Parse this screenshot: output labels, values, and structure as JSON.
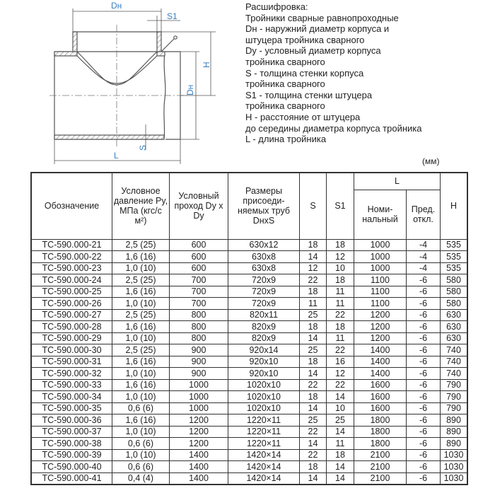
{
  "drawing": {
    "labels": {
      "dh_top": "Dн",
      "s1": "S1",
      "h": "H",
      "dh_side": "Dн",
      "l": "L",
      "s": "S"
    },
    "label_color": "#3a7fc1"
  },
  "legend": {
    "lines": [
      "Расшифровка:",
      "Тройники сварные равнопроходные",
      "Dн - наружний диаметр корпуса и",
      "штуцера тройника сварного",
      "Dy - условный диаметр корпуса",
      "тройника сварного",
      "S - толщина стенки корпуса",
      "тройника сварного",
      "S1 - толщина стенки штуцера",
      "тройника сварного",
      "H - расстояние от штуцера",
      "до середины диаметра корпуса тройника",
      "L - длина тройника"
    ],
    "units": "(мм)"
  },
  "table": {
    "headers": {
      "designation": "Обозначение",
      "pressure": "Условное давление Py, МПа (кгс/с м²)",
      "bore": "Условный проход Dy x Dy",
      "pipe_size": "Размеры присоеди-няемых труб DнxS",
      "s": "S",
      "s1": "S1",
      "l_group": "L",
      "l_nominal": "Номи-нальный",
      "l_tolerance": "Пред. откл.",
      "h": "H"
    },
    "rows": [
      [
        "ТС-590.000-21",
        "2,5 (25)",
        "600",
        "630x12",
        "18",
        "18",
        "1000",
        "-4",
        "535"
      ],
      [
        "ТС-590.000-22",
        "1,6 (16)",
        "600",
        "630x8",
        "14",
        "12",
        "1000",
        "-4",
        "535"
      ],
      [
        "ТС-590.000-23",
        "1,0 (10)",
        "600",
        "630x8",
        "12",
        "10",
        "1000",
        "-4",
        "535"
      ],
      [
        "ТС-590.000-24",
        "2,5 (25)",
        "700",
        "720x9",
        "22",
        "18",
        "1100",
        "-6",
        "580"
      ],
      [
        "ТС-590.000-25",
        "1,6 (16)",
        "700",
        "720x9",
        "18",
        "11",
        "1100",
        "-6",
        "580"
      ],
      [
        "ТС-590.000-26",
        "1,0 (10)",
        "700",
        "720x9",
        "11",
        "11",
        "1100",
        "-6",
        "580"
      ],
      [
        "ТС-590.000-27",
        "2,5 (25)",
        "800",
        "820x11",
        "25",
        "22",
        "1200",
        "-6",
        "630"
      ],
      [
        "ТС-590.000-28",
        "1,6 (16)",
        "800",
        "820x9",
        "18",
        "18",
        "1200",
        "-6",
        "630"
      ],
      [
        "ТС-590.000-29",
        "1,0 (10)",
        "800",
        "820x9",
        "14",
        "11",
        "1200",
        "-6",
        "630"
      ],
      [
        "ТС-590.000-30",
        "2,5 (25)",
        "900",
        "920x14",
        "25",
        "22",
        "1400",
        "-6",
        "740"
      ],
      [
        "ТС-590.000-31",
        "1,6 (16)",
        "900",
        "920x10",
        "18",
        "16",
        "1400",
        "-6",
        "740"
      ],
      [
        "ТС-590.000-32",
        "1,0 (10)",
        "900",
        "920x10",
        "14",
        "12",
        "1400",
        "-6",
        "740"
      ],
      [
        "ТС-590.000-33",
        "1,6 (16)",
        "1000",
        "1020x10",
        "22",
        "22",
        "1600",
        "-6",
        "790"
      ],
      [
        "ТС-590.000-34",
        "1,0 (10)",
        "1000",
        "1020x10",
        "18",
        "14",
        "1600",
        "-6",
        "790"
      ],
      [
        "ТС-590.000-35",
        "0,6 (6)",
        "1000",
        "1020x10",
        "14",
        "10",
        "1600",
        "-6",
        "790"
      ],
      [
        "ТС-590.000-36",
        "1,6 (16)",
        "1200",
        "1220×11",
        "25",
        "25",
        "1800",
        "-6",
        "890"
      ],
      [
        "ТС-590.000-37",
        "1,0 (10)",
        "1200",
        "1220×11",
        "22",
        "14",
        "1800",
        "-6",
        "890"
      ],
      [
        "ТС-590.000-38",
        "0,6 (6)",
        "1200",
        "1220×11",
        "14",
        "11",
        "1800",
        "-6",
        "890"
      ],
      [
        "ТС-590.000-39",
        "1,0 (10)",
        "1400",
        "1420×14",
        "22",
        "18",
        "2100",
        "-6",
        "1030"
      ],
      [
        "ТС-590.000-40",
        "0,6 (6)",
        "1400",
        "1420×14",
        "18",
        "14",
        "2100",
        "-6",
        "1030"
      ],
      [
        "ТС-590.000-41",
        "0,4 (4)",
        "1400",
        "1420×14",
        "14",
        "14",
        "2100",
        "-6",
        "1030"
      ]
    ]
  }
}
